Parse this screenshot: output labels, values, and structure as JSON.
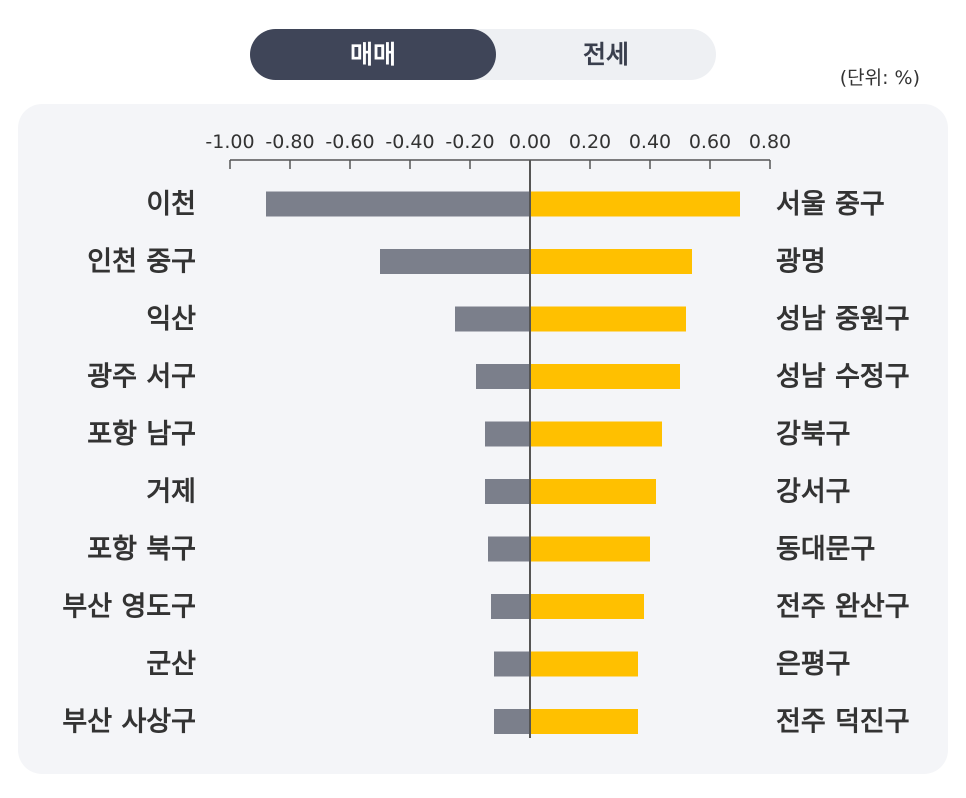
{
  "toggle": {
    "active_label": "매매",
    "inactive_label": "전세"
  },
  "unit_label": "(단위: %)",
  "colors": {
    "negative_bar": "#7b7f8b",
    "positive_bar": "#ffc000",
    "axis": "#555555",
    "toggle_active_bg": "#3f4558",
    "card_bg": "#f4f5f8"
  },
  "chart_data": {
    "type": "bar",
    "orientation": "horizontal-diverging",
    "xlim": [
      -1.0,
      0.8
    ],
    "ticks": [
      "-1.00",
      "-0.80",
      "-0.60",
      "-0.40",
      "-0.20",
      "0.00",
      "0.20",
      "0.40",
      "0.60",
      "0.80"
    ],
    "tick_values": [
      -1.0,
      -0.8,
      -0.6,
      -0.4,
      -0.2,
      0.0,
      0.2,
      0.4,
      0.6,
      0.8
    ],
    "series": [
      {
        "categories": [
          "이천",
          "인천 중구",
          "익산",
          "광주 서구",
          "포항 남구",
          "거제",
          "포항 북구",
          "부산 영도구",
          "군산",
          "부산 사상구"
        ],
        "values": [
          -0.88,
          -0.5,
          -0.25,
          -0.18,
          -0.15,
          -0.15,
          -0.14,
          -0.13,
          -0.12,
          -0.12
        ]
      },
      {
        "categories": [
          "서울 중구",
          "광명",
          "성남 중원구",
          "성남 수정구",
          "강북구",
          "강서구",
          "동대문구",
          "전주 완산구",
          "은평구",
          "전주 덕진구"
        ],
        "values": [
          0.7,
          0.54,
          0.52,
          0.5,
          0.44,
          0.42,
          0.4,
          0.38,
          0.36,
          0.36
        ]
      }
    ]
  }
}
